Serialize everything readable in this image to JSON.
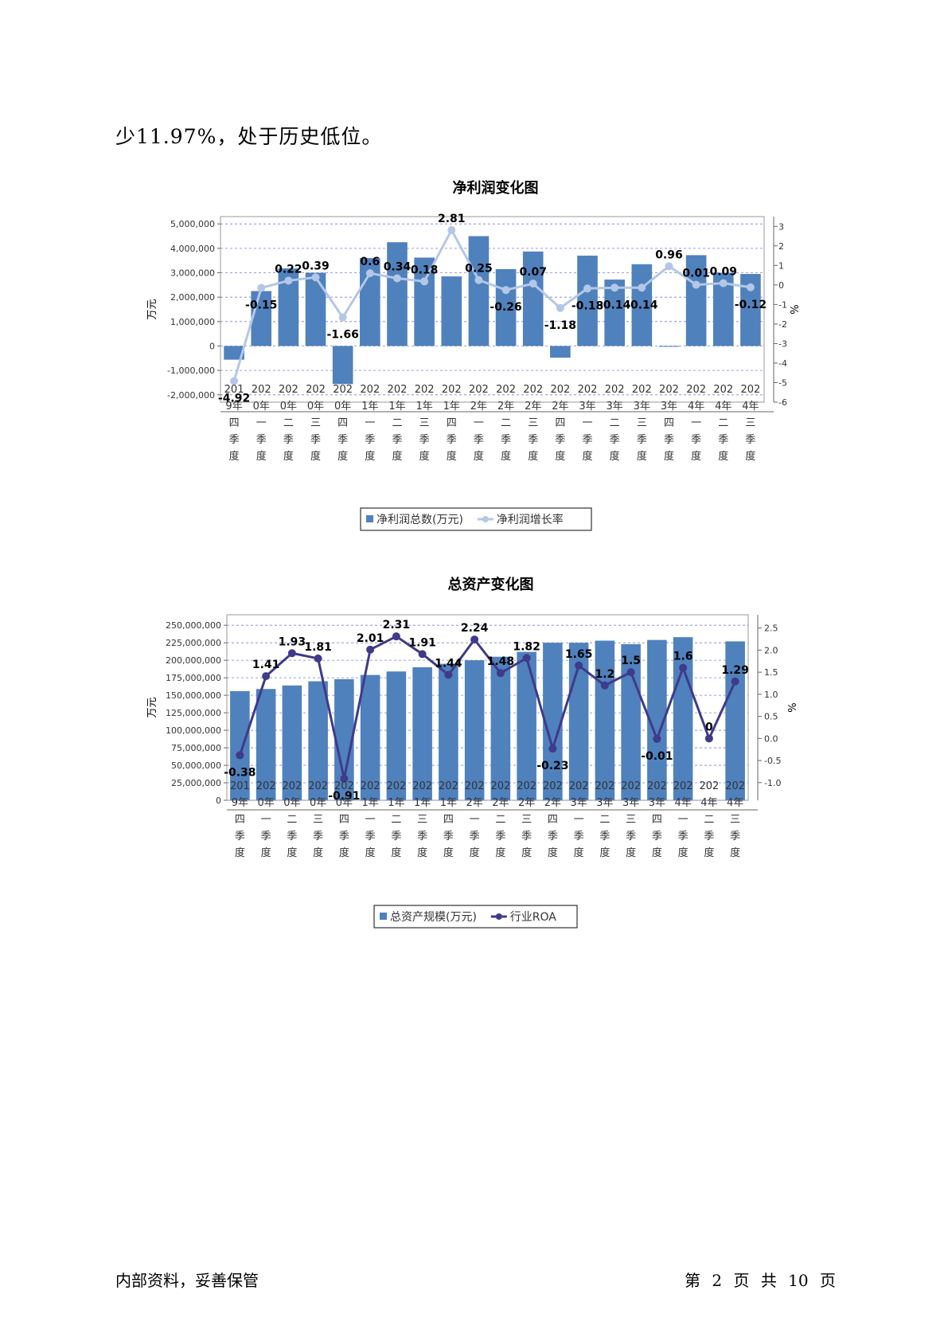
{
  "intro_text": "少11.97%，处于历史低位。",
  "footer": {
    "left": "内部资料，妥善保管",
    "right": "第 2 页  共 10 页"
  },
  "chart_data": [
    {
      "type": "bar",
      "title": "净利润变化图",
      "ylabel": "万元",
      "ylabel_right": "%",
      "ylim": [
        -2300000,
        5300000
      ],
      "ylim_right": [
        -6,
        3.5
      ],
      "yticks": [
        "5,000,000",
        "4,000,000",
        "3,000,000",
        "2,000,000",
        "1,000,000",
        "0",
        "-1,000,000",
        "-2,000,000"
      ],
      "yticks_right": [
        "3",
        "2",
        "1",
        "0",
        "-1",
        "-2",
        "-3",
        "-4",
        "-5",
        "-6"
      ],
      "categories": [
        "2019年四季度",
        "2020年一季度",
        "2020年二季度",
        "2020年三季度",
        "2020年四季度",
        "2021年一季度",
        "2021年二季度",
        "2021年三季度",
        "2021年四季度",
        "2022年一季度",
        "2022年二季度",
        "2022年三季度",
        "2022年四季度",
        "2023年一季度",
        "2023年二季度",
        "2023年三季度",
        "2023年四季度",
        "2024年一季度",
        "2024年二季度",
        "2024年三季度"
      ],
      "category_lines": [
        [
          "201",
          "9年",
          "四",
          "季",
          "度"
        ],
        [
          "202",
          "0年",
          "一",
          "季",
          "度"
        ],
        [
          "202",
          "0年",
          "二",
          "季",
          "度"
        ],
        [
          "202",
          "0年",
          "三",
          "季",
          "度"
        ],
        [
          "202",
          "0年",
          "四",
          "季",
          "度"
        ],
        [
          "202",
          "1年",
          "一",
          "季",
          "度"
        ],
        [
          "202",
          "1年",
          "二",
          "季",
          "度"
        ],
        [
          "202",
          "1年",
          "三",
          "季",
          "度"
        ],
        [
          "202",
          "1年",
          "四",
          "季",
          "度"
        ],
        [
          "202",
          "2年",
          "一",
          "季",
          "度"
        ],
        [
          "202",
          "2年",
          "二",
          "季",
          "度"
        ],
        [
          "202",
          "2年",
          "三",
          "季",
          "度"
        ],
        [
          "202",
          "2年",
          "四",
          "季",
          "度"
        ],
        [
          "202",
          "3年",
          "一",
          "季",
          "度"
        ],
        [
          "202",
          "3年",
          "二",
          "季",
          "度"
        ],
        [
          "202",
          "3年",
          "三",
          "季",
          "度"
        ],
        [
          "202",
          "3年",
          "四",
          "季",
          "度"
        ],
        [
          "202",
          "4年",
          "一",
          "季",
          "度"
        ],
        [
          "202",
          "4年",
          "二",
          "季",
          "度"
        ],
        [
          "202",
          "4年",
          "三",
          "季",
          "度"
        ]
      ],
      "series": [
        {
          "name": "净利润总数(万元)",
          "kind": "bar",
          "axis": "left",
          "color": "#4f81bd",
          "values": [
            -560000,
            2250000,
            3180000,
            3000000,
            -1560000,
            3600000,
            4250000,
            3620000,
            2850000,
            4500000,
            3150000,
            3870000,
            -480000,
            3700000,
            2720000,
            3350000,
            -20000,
            3720000,
            3000000,
            2950000
          ]
        },
        {
          "name": "净利润增长率",
          "kind": "line",
          "axis": "right",
          "color": "#b4c7e7",
          "values": [
            -4.92,
            -0.15,
            0.22,
            0.39,
            -1.66,
            0.6,
            0.34,
            0.18,
            2.81,
            0.25,
            -0.26,
            0.07,
            -1.18,
            -0.18,
            -0.14,
            -0.14,
            0.96,
            0.01,
            0.09,
            -0.12
          ],
          "labels": [
            "-4.92",
            "-0.15",
            "0.22",
            "0.39",
            "-1.66",
            "0.6",
            "0.34",
            "0.18",
            "2.81",
            "0.25",
            "-0.26",
            "0.07",
            "-1.18",
            "-0.18",
            "-0.14",
            "-0.14",
            "0.96",
            "0.01",
            "0.09",
            "-0.12"
          ]
        }
      ],
      "grid": true,
      "legend": "bottom"
    },
    {
      "type": "bar",
      "title": "总资产变化图",
      "ylabel": "万元",
      "ylabel_right": "%",
      "ylim": [
        0,
        265000000
      ],
      "ylim_right": [
        -1.4,
        2.8
      ],
      "yticks": [
        "250,000,000",
        "225,000,000",
        "200,000,000",
        "175,000,000",
        "150,000,000",
        "125,000,000",
        "100,000,000",
        "75,000,000",
        "50,000,000",
        "25,000,000",
        "0"
      ],
      "yticks_right": [
        "2.5",
        "2.0",
        "1.5",
        "1.0",
        "0.5",
        "0.0",
        "-0.5",
        "-1.0"
      ],
      "categories": [
        "2019年四季度",
        "2020年一季度",
        "2020年二季度",
        "2020年三季度",
        "2020年四季度",
        "2021年一季度",
        "2021年二季度",
        "2021年三季度",
        "2021年四季度",
        "2022年一季度",
        "2022年二季度",
        "2022年三季度",
        "2022年四季度",
        "2023年一季度",
        "2023年二季度",
        "2023年三季度",
        "2023年四季度",
        "2024年一季度",
        "2024年二季度",
        "2024年三季度"
      ],
      "category_lines": [
        [
          "201",
          "9年",
          "四",
          "季",
          "度"
        ],
        [
          "202",
          "0年",
          "一",
          "季",
          "度"
        ],
        [
          "202",
          "0年",
          "二",
          "季",
          "度"
        ],
        [
          "202",
          "0年",
          "三",
          "季",
          "度"
        ],
        [
          "202",
          "0年",
          "四",
          "季",
          "度"
        ],
        [
          "202",
          "1年",
          "一",
          "季",
          "度"
        ],
        [
          "202",
          "1年",
          "二",
          "季",
          "度"
        ],
        [
          "202",
          "1年",
          "三",
          "季",
          "度"
        ],
        [
          "202",
          "1年",
          "四",
          "季",
          "度"
        ],
        [
          "202",
          "2年",
          "一",
          "季",
          "度"
        ],
        [
          "202",
          "2年",
          "二",
          "季",
          "度"
        ],
        [
          "202",
          "2年",
          "三",
          "季",
          "度"
        ],
        [
          "202",
          "2年",
          "四",
          "季",
          "度"
        ],
        [
          "202",
          "3年",
          "一",
          "季",
          "度"
        ],
        [
          "202",
          "3年",
          "二",
          "季",
          "度"
        ],
        [
          "202",
          "3年",
          "三",
          "季",
          "度"
        ],
        [
          "202",
          "3年",
          "四",
          "季",
          "度"
        ],
        [
          "202",
          "4年",
          "一",
          "季",
          "度"
        ],
        [
          "202",
          "4年",
          "二",
          "季",
          "度"
        ],
        [
          "202",
          "4年",
          "三",
          "季",
          "度"
        ]
      ],
      "series": [
        {
          "name": "总资产规模(万元)",
          "kind": "bar",
          "axis": "left",
          "color": "#4f81bd",
          "values": [
            156000000,
            159000000,
            164000000,
            170000000,
            173000000,
            179000000,
            184000000,
            190000000,
            195000000,
            200000000,
            205000000,
            212000000,
            225000000,
            225000000,
            228000000,
            223000000,
            229000000,
            233000000,
            0,
            227000000
          ]
        },
        {
          "name": "行业ROA",
          "kind": "line",
          "axis": "right",
          "color": "#3f3a8a",
          "values": [
            -0.38,
            1.41,
            1.93,
            1.81,
            -0.91,
            2.01,
            2.31,
            1.91,
            1.44,
            2.24,
            1.48,
            1.82,
            -0.23,
            1.65,
            1.2,
            1.5,
            -0.01,
            1.6,
            0,
            1.29
          ],
          "labels": [
            "-0.38",
            "1.41",
            "1.93",
            "1.81",
            "-0.91",
            "2.01",
            "2.31",
            "1.91",
            "1.44",
            "2.24",
            "1.48",
            "1.82",
            "-0.23",
            "1.65",
            "1.2",
            "1.5",
            "-0.01",
            "1.6",
            "0",
            "1.29"
          ]
        }
      ],
      "grid": true,
      "legend": "bottom"
    }
  ]
}
